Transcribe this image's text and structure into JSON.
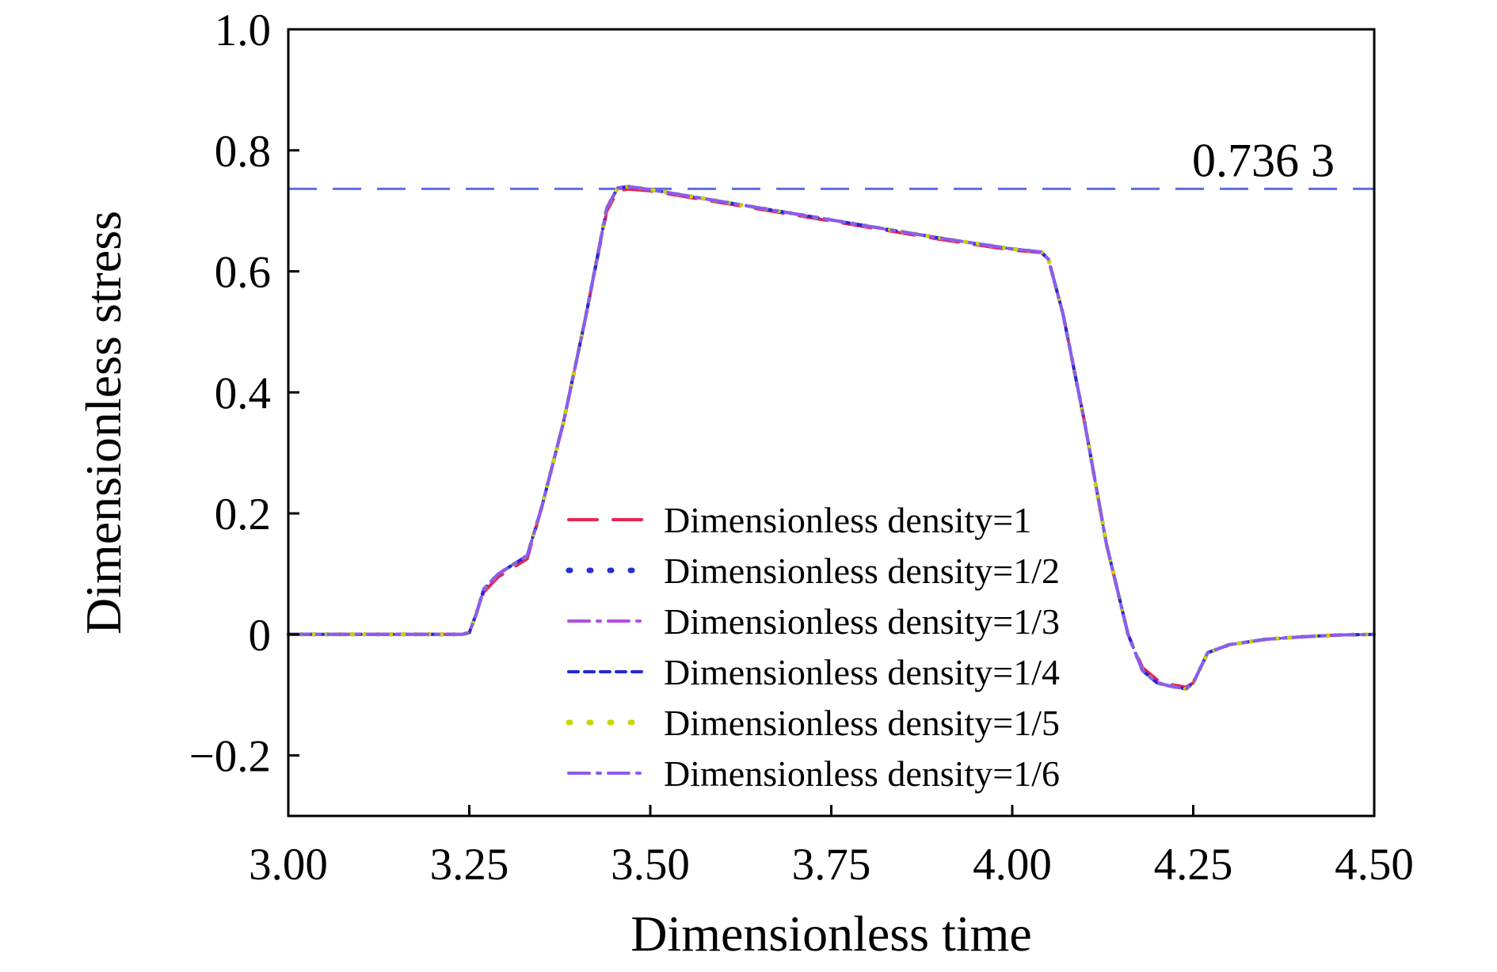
{
  "chart_data": {
    "type": "line",
    "title": "",
    "xlabel": "Dimensionless time",
    "ylabel": "Dimensionless stress",
    "xlim": [
      3.0,
      4.5
    ],
    "ylim": [
      -0.3,
      1.0
    ],
    "x_ticks": [
      3.0,
      3.25,
      3.5,
      3.75,
      4.0,
      4.25,
      4.5
    ],
    "x_tick_labels": [
      "3.00",
      "3.25",
      "3.50",
      "3.75",
      "4.00",
      "4.25",
      "4.50"
    ],
    "y_ticks": [
      -0.2,
      0,
      0.2,
      0.4,
      0.6,
      0.8,
      1.0
    ],
    "y_tick_labels": [
      "−0.2",
      "0",
      "0.2",
      "0.4",
      "0.6",
      "0.8",
      "1.0"
    ],
    "grid": false,
    "legend_position": "lower-center",
    "reference_line": {
      "y": 0.7363,
      "label": "0.736 3",
      "color": "#5b6ee8",
      "dash": "dashed"
    },
    "x": [
      3.0,
      3.1,
      3.2,
      3.24,
      3.25,
      3.26,
      3.27,
      3.29,
      3.31,
      3.33,
      3.35,
      3.38,
      3.41,
      3.44,
      3.455,
      3.47,
      3.5,
      3.6,
      3.7,
      3.8,
      3.9,
      4.0,
      4.04,
      4.05,
      4.07,
      4.1,
      4.13,
      4.16,
      4.18,
      4.2,
      4.22,
      4.24,
      4.25,
      4.27,
      4.3,
      4.35,
      4.4,
      4.45,
      4.5
    ],
    "series": [
      {
        "name": "Dimensionless density=1",
        "color": "#e8234f",
        "style": "dash",
        "values": [
          0,
          0,
          0,
          0,
          0.003,
          0.035,
          0.07,
          0.095,
          0.11,
          0.125,
          0.21,
          0.35,
          0.52,
          0.7,
          0.733,
          0.736,
          0.733,
          0.713,
          0.693,
          0.673,
          0.653,
          0.635,
          0.631,
          0.62,
          0.53,
          0.35,
          0.15,
          0.0,
          -0.055,
          -0.075,
          -0.083,
          -0.087,
          -0.08,
          -0.03,
          -0.017,
          -0.008,
          -0.004,
          -0.001,
          0
        ]
      },
      {
        "name": "Dimensionless density=1/2",
        "color": "#2a2fd0",
        "style": "dot",
        "values": [
          0,
          0,
          0,
          0,
          0.003,
          0.035,
          0.075,
          0.1,
          0.115,
          0.13,
          0.21,
          0.35,
          0.52,
          0.705,
          0.738,
          0.74,
          0.735,
          0.715,
          0.695,
          0.675,
          0.655,
          0.637,
          0.632,
          0.62,
          0.53,
          0.35,
          0.15,
          0.0,
          -0.06,
          -0.08,
          -0.086,
          -0.09,
          -0.08,
          -0.03,
          -0.017,
          -0.008,
          -0.004,
          -0.001,
          0
        ]
      },
      {
        "name": "Dimensionless density=1/3",
        "color": "#b04fe0",
        "style": "dashdot",
        "values": [
          0,
          0,
          0,
          0,
          0.003,
          0.035,
          0.075,
          0.1,
          0.115,
          0.13,
          0.21,
          0.35,
          0.52,
          0.705,
          0.738,
          0.74,
          0.735,
          0.715,
          0.695,
          0.675,
          0.655,
          0.637,
          0.632,
          0.62,
          0.53,
          0.35,
          0.15,
          0.0,
          -0.06,
          -0.08,
          -0.086,
          -0.09,
          -0.08,
          -0.03,
          -0.017,
          -0.008,
          -0.004,
          -0.001,
          0
        ]
      },
      {
        "name": "Dimensionless density=1/4",
        "color": "#1f2bd9",
        "style": "shortdash",
        "values": [
          0,
          0,
          0,
          0,
          0.003,
          0.035,
          0.075,
          0.1,
          0.115,
          0.13,
          0.21,
          0.35,
          0.52,
          0.705,
          0.738,
          0.74,
          0.735,
          0.715,
          0.695,
          0.675,
          0.655,
          0.637,
          0.632,
          0.62,
          0.53,
          0.35,
          0.15,
          0.0,
          -0.06,
          -0.08,
          -0.086,
          -0.09,
          -0.08,
          -0.03,
          -0.017,
          -0.008,
          -0.004,
          -0.001,
          0
        ]
      },
      {
        "name": "Dimensionless density=1/5",
        "color": "#c8d600",
        "style": "dot",
        "values": [
          0,
          0,
          0,
          0,
          0.003,
          0.035,
          0.075,
          0.1,
          0.115,
          0.13,
          0.21,
          0.35,
          0.52,
          0.705,
          0.738,
          0.74,
          0.735,
          0.715,
          0.695,
          0.675,
          0.655,
          0.637,
          0.632,
          0.62,
          0.53,
          0.35,
          0.15,
          0.0,
          -0.06,
          -0.08,
          -0.086,
          -0.09,
          -0.08,
          -0.03,
          -0.017,
          -0.008,
          -0.004,
          -0.001,
          0
        ]
      },
      {
        "name": "Dimensionless density=1/6",
        "color": "#8a5cf0",
        "style": "dashdot",
        "values": [
          0,
          0,
          0,
          0,
          0.003,
          0.035,
          0.075,
          0.1,
          0.115,
          0.13,
          0.21,
          0.35,
          0.52,
          0.705,
          0.738,
          0.74,
          0.735,
          0.715,
          0.695,
          0.675,
          0.655,
          0.637,
          0.632,
          0.62,
          0.53,
          0.35,
          0.15,
          0.0,
          -0.06,
          -0.08,
          -0.086,
          -0.09,
          -0.08,
          -0.03,
          -0.017,
          -0.008,
          -0.004,
          -0.001,
          0
        ]
      }
    ]
  }
}
